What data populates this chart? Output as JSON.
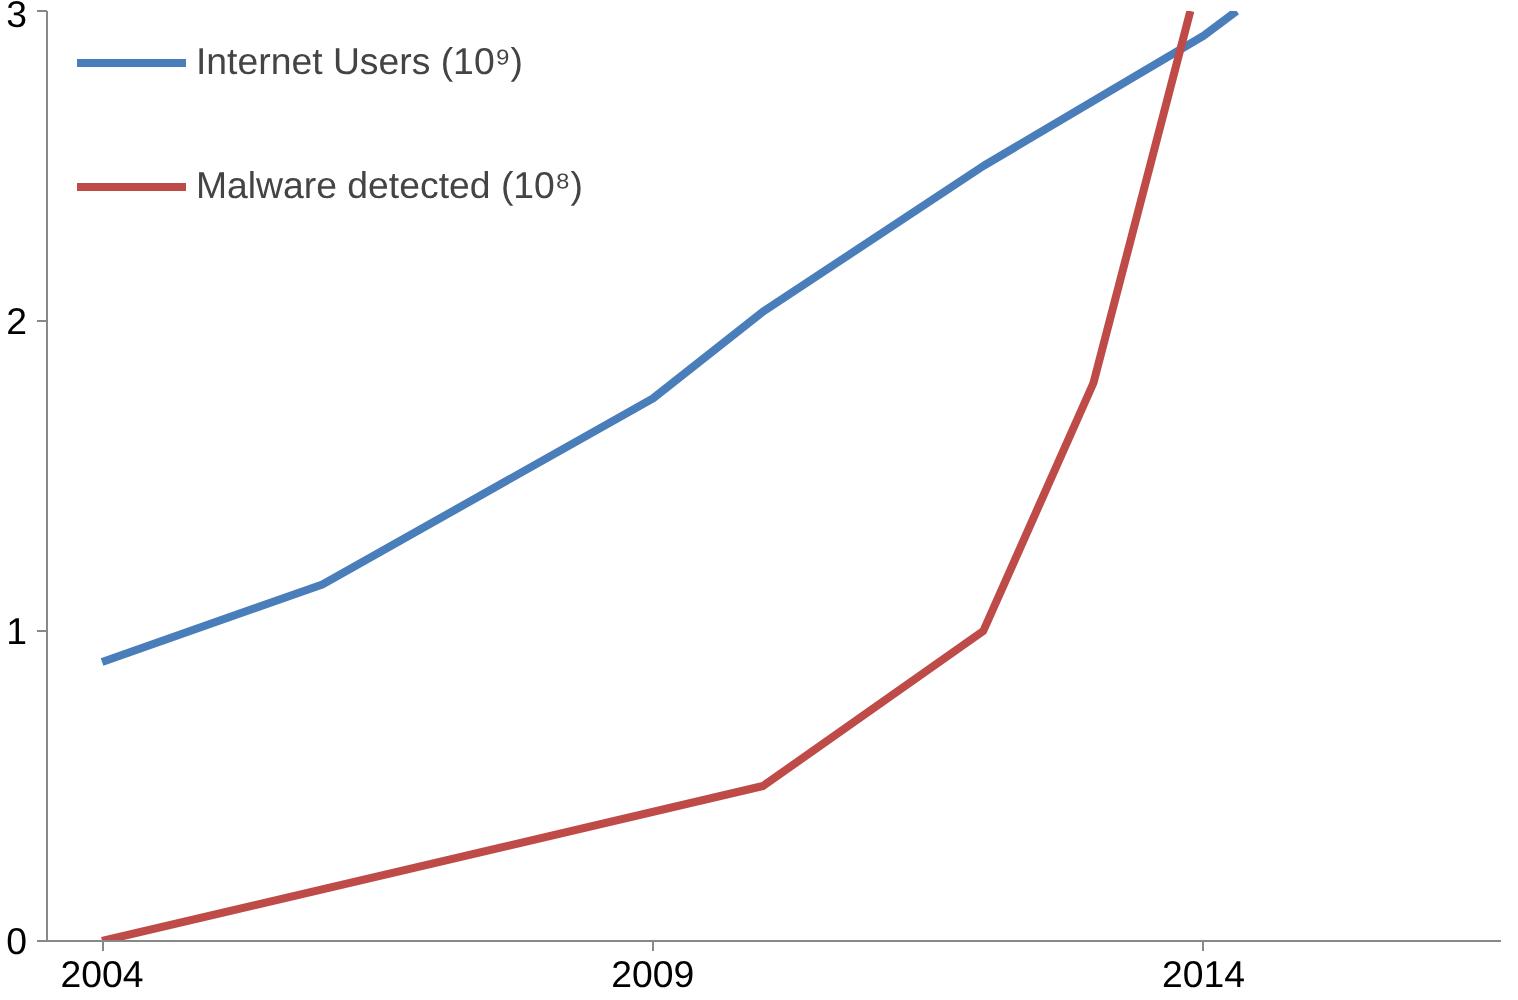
{
  "chart_data": {
    "type": "line",
    "xlim": [
      2003.5,
      2016.7
    ],
    "xticks": [
      2004,
      2009,
      2014
    ],
    "ylim": [
      0,
      3
    ],
    "yticks": [
      0,
      1,
      2,
      3
    ],
    "grid": false,
    "legend": "top left",
    "marker": "none",
    "line_style": "solid",
    "series": [
      {
        "name": "Internet Users (10⁹)",
        "color": "#4a7ebb",
        "x": [
          2004,
          2006,
          2009,
          2010,
          2012,
          2014,
          2014.3
        ],
        "values": [
          0.9,
          1.15,
          1.75,
          2.03,
          2.5,
          2.92,
          3
        ]
      },
      {
        "name": "Malware detected (10⁸)",
        "color": "#be4b48",
        "x": [
          2004,
          2010,
          2012,
          2013,
          2013.88
        ],
        "values": [
          0,
          0.5,
          1.0,
          1.8,
          3
        ]
      }
    ]
  }
}
